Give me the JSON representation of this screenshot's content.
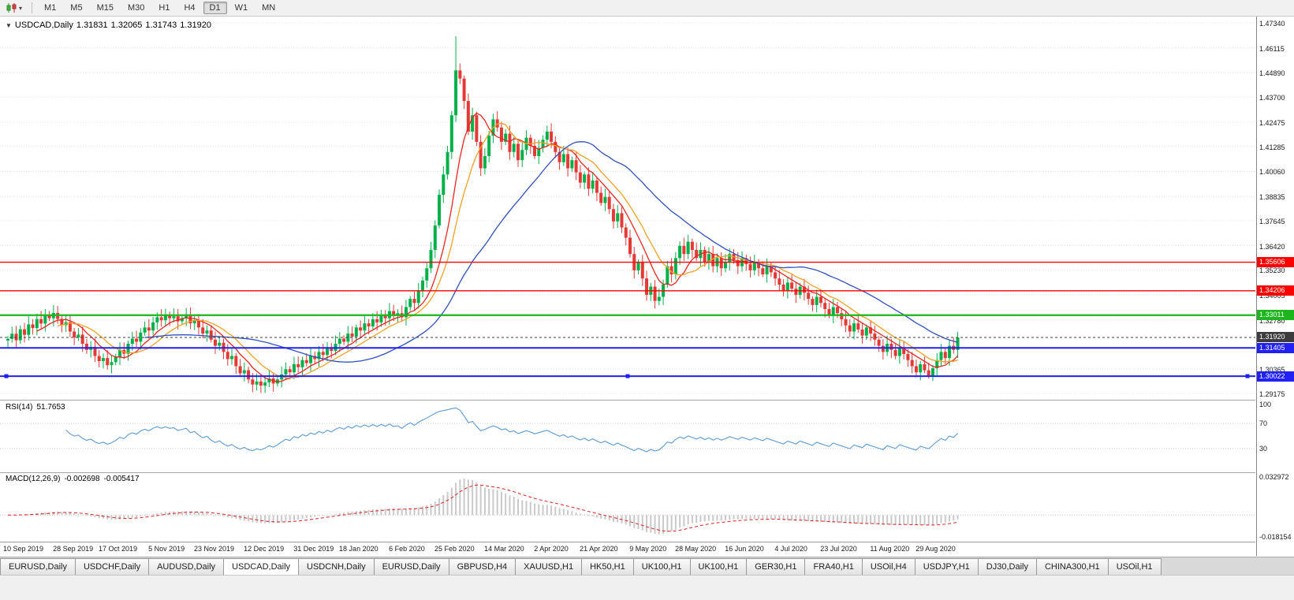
{
  "icons": {
    "chart_dropdown_caret": "▾",
    "symbol_dropdown": "▼"
  },
  "toolbar": {
    "timeframes": [
      "M1",
      "M5",
      "M15",
      "M30",
      "H1",
      "H4",
      "D1",
      "W1",
      "MN"
    ],
    "active_timeframe": "D1"
  },
  "chart_header": {
    "symbol": "USDCAD,Daily",
    "open": "1.31831",
    "high": "1.32065",
    "low": "1.31743",
    "close": "1.31920"
  },
  "colors": {
    "bull": "#00b14a",
    "bear": "#e53935",
    "ma_fast": "#e8251f",
    "ma_mid": "#f0a122",
    "ma_slow": "#3050c0",
    "line_red": "#fe0000",
    "line_green": "#1db51d",
    "line_blue": "#2121f5",
    "current_price": "#3c3c3c",
    "rsi_line": "#5b9bd5",
    "macd_hist": "#c9c9c9",
    "macd_signal": "#e02020",
    "grid": "#e3e3e3"
  },
  "price_axis": {
    "ticks": [
      "1.47340",
      "1.46115",
      "1.44890",
      "1.43700",
      "1.42475",
      "1.41285",
      "1.40060",
      "1.38835",
      "1.37645",
      "1.36420",
      "1.35230",
      "1.34005",
      "1.32780",
      "1.30365",
      "1.29175"
    ]
  },
  "hlines": [
    {
      "price": 1.35606,
      "label": "1.35606",
      "color_key": "line_red",
      "width": 1.4,
      "handles": false
    },
    {
      "price": 1.34206,
      "label": "1.34206",
      "color_key": "line_red",
      "width": 1.4,
      "handles": false
    },
    {
      "price": 1.33011,
      "label": "1.33011",
      "color_key": "line_green",
      "width": 2.2,
      "handles": false
    },
    {
      "price": 1.31405,
      "label": "1.31405",
      "color_key": "line_blue",
      "width": 2.0,
      "handles": false
    },
    {
      "price": 1.30022,
      "label": "1.30022",
      "color_key": "line_blue",
      "width": 2.0,
      "handles": true
    }
  ],
  "current_price": {
    "value": 1.3192,
    "label": "1.31920"
  },
  "rsi": {
    "label": "RSI(14)",
    "value": "51.7653",
    "period": 14,
    "levels": [
      70,
      30
    ],
    "scale_labels": [
      "100",
      "70",
      "30"
    ],
    "scale_values": [
      100,
      70,
      30
    ]
  },
  "macd": {
    "label": "MACD(12,26,9)",
    "value_main": "-0.002698",
    "value_signal": "-0.005417",
    "fast": 12,
    "slow": 26,
    "signal": 9,
    "axis_max_label": "0.032972",
    "axis_min_label": "-0.018154",
    "axis_max": 0.032972,
    "axis_min": -0.018154
  },
  "tabs": {
    "active_index": 3,
    "items": [
      "EURUSD,Daily",
      "USDCHF,Daily",
      "AUDUSD,Daily",
      "USDCAD,Daily",
      "USDCNH,Daily",
      "EURUSD,Daily",
      "GBPUSD,H4",
      "XAUUSD,H1",
      "HK50,H1",
      "UK100,H1",
      "UK100,H1",
      "GER30,H1",
      "FRA40,H1",
      "USOil,H4",
      "USDJPY,H1",
      "DJ30,Daily",
      "CHINA300,H1",
      "USOil,H1"
    ]
  },
  "chart_data": {
    "type": "candlestick",
    "symbol": "USDCAD",
    "timeframe": "Daily",
    "ylim": [
      1.29175,
      1.4734
    ],
    "x_labels": [
      "10 Sep 2019",
      "28 Sep 2019",
      "17 Oct 2019",
      "5 Nov 2019",
      "23 Nov 2019",
      "12 Dec 2019",
      "31 Dec 2019",
      "18 Jan 2020",
      "6 Feb 2020",
      "25 Feb 2020",
      "14 Mar 2020",
      "2 Apr 2020",
      "21 Apr 2020",
      "9 May 2020",
      "28 May 2020",
      "16 Jun 2020",
      "4 Jul 2020",
      "23 Jul 2020",
      "11 Aug 2020",
      "29 Aug 2020"
    ],
    "closes": [
      1.3185,
      1.321,
      1.3178,
      1.3232,
      1.3205,
      1.3256,
      1.3238,
      1.3282,
      1.326,
      1.3301,
      1.3286,
      1.3312,
      1.3283,
      1.3252,
      1.3266,
      1.3221,
      1.3192,
      1.3206,
      1.3161,
      1.3131,
      1.3146,
      1.3101,
      1.3076,
      1.3091,
      1.3056,
      1.3071,
      1.3096,
      1.3131,
      1.3112,
      1.3161,
      1.3186,
      1.3171,
      1.3216,
      1.3241,
      1.3226,
      1.3266,
      1.3291,
      1.3276,
      1.3301,
      1.3286,
      1.3296,
      1.3271,
      1.3286,
      1.3301,
      1.3261,
      1.3276,
      1.3241,
      1.3211,
      1.3226,
      1.3181,
      1.3151,
      1.3166,
      1.3121,
      1.3086,
      1.3101,
      1.3051,
      1.3016,
      1.3031,
      1.2986,
      1.2961,
      1.2976,
      1.2956,
      1.2971,
      1.2991,
      1.2966,
      1.2986,
      1.3011,
      1.3036,
      1.3021,
      1.3061,
      1.3046,
      1.3081,
      1.3066,
      1.3101,
      1.3086,
      1.3121,
      1.3106,
      1.3141,
      1.3126,
      1.3161,
      1.3186,
      1.3171,
      1.3211,
      1.3196,
      1.3241,
      1.3226,
      1.3261,
      1.3246,
      1.3281,
      1.3266,
      1.3301,
      1.3286,
      1.3321,
      1.3301,
      1.3311,
      1.3291,
      1.3341,
      1.3381,
      1.3361,
      1.3421,
      1.3471,
      1.3531,
      1.3621,
      1.3741,
      1.3891,
      1.3991,
      1.4101,
      1.4281,
      1.4501,
      1.4461,
      1.4351,
      1.4201,
      1.4281,
      1.4151,
      1.4021,
      1.4081,
      1.4181,
      1.4261,
      1.4221,
      1.4151,
      1.4191,
      1.4101,
      1.4141,
      1.4061,
      1.4111,
      1.4171,
      1.4131,
      1.4081,
      1.4121,
      1.4161,
      1.4201,
      1.4151,
      1.4101,
      1.4051,
      1.4091,
      1.4021,
      1.4061,
      1.4001,
      1.3951,
      1.3991,
      1.3921,
      1.3961,
      1.3901,
      1.3851,
      1.3881,
      1.3821,
      1.3761,
      1.3801,
      1.3731,
      1.3681,
      1.3601,
      1.3521,
      1.3561,
      1.3481,
      1.3401,
      1.3441,
      1.3371,
      1.3391,
      1.3451,
      1.3541,
      1.3501,
      1.3581,
      1.3641,
      1.3601,
      1.3661,
      1.3621,
      1.3581,
      1.3621,
      1.3561,
      1.3601,
      1.3541,
      1.3581,
      1.3531,
      1.3561,
      1.3601,
      1.3571,
      1.3541,
      1.3581,
      1.3551,
      1.3521,
      1.3561,
      1.3531,
      1.3501,
      1.3541,
      1.3511,
      1.3481,
      1.3451,
      1.3421,
      1.3461,
      1.3431,
      1.3401,
      1.3441,
      1.3411,
      1.3381,
      1.3351,
      1.3391,
      1.3361,
      1.3331,
      1.3301,
      1.3341,
      1.3311,
      1.3281,
      1.3251,
      1.3221,
      1.3261,
      1.3231,
      1.3201,
      1.3241,
      1.3211,
      1.3181,
      1.3151,
      1.3121,
      1.3161,
      1.3131,
      1.3101,
      1.3141,
      1.3111,
      1.3081,
      1.3051,
      1.3021,
      1.3061,
      1.3031,
      1.3001,
      1.3041,
      1.3081,
      1.3121,
      1.3091,
      1.3151,
      1.3131,
      1.3192
    ],
    "extremes": [
      {
        "index": 108,
        "high": 1.4668
      },
      {
        "index": 61,
        "low": 1.292
      },
      {
        "index": 222,
        "low": 1.299
      }
    ],
    "moving_averages": [
      {
        "period": 8,
        "color_key": "ma_fast"
      },
      {
        "period": 13,
        "color_key": "ma_mid"
      },
      {
        "period": 34,
        "color_key": "ma_slow"
      }
    ]
  }
}
